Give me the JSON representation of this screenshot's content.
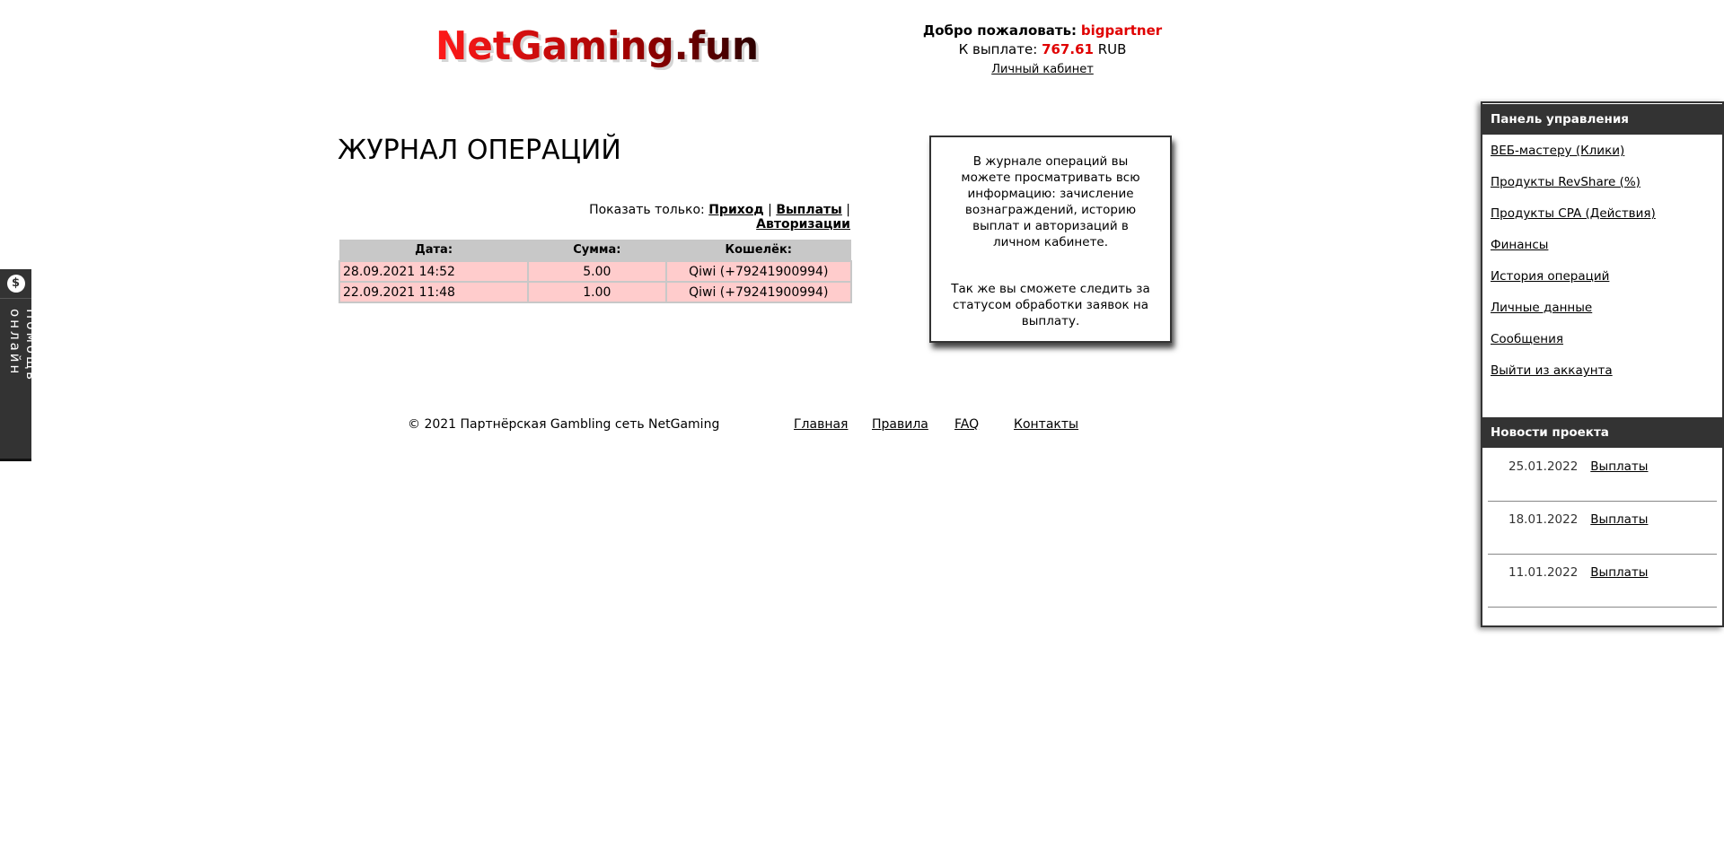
{
  "header": {
    "logo_text": "NetGaming.fun",
    "welcome_label": "Добро пожаловать:",
    "username": "bigpartner",
    "payout_label": "К выплате:",
    "payout_amount": "767.61",
    "currency": "RUB",
    "cabinet_link": "Личный кабинет"
  },
  "main": {
    "title": "ЖУРНАЛ ОПЕРАЦИЙ",
    "filter": {
      "label": "Показать только:",
      "options": [
        "Приход",
        "Выплаты",
        "Авторизации"
      ],
      "sep": "|"
    },
    "table": {
      "headers": [
        "Дата:",
        "Сумма:",
        "Кошелёк:"
      ],
      "rows": [
        [
          "28.09.2021 14:52",
          "5.00",
          "Qiwi (+79241900994)"
        ],
        [
          "22.09.2021 11:48",
          "1.00",
          "Qiwi (+79241900994)"
        ]
      ]
    }
  },
  "info": {
    "p1": "В журнале операций вы можете просматривать всю информацию: зачисление вознаграждений, историю выплат и авторизаций в личном кабинете.",
    "p2": "Так же вы сможете следить за статусом обработки заявок на выплату."
  },
  "footer": {
    "copyright": "© 2021 Партнёрская Gambling сеть NetGaming",
    "links": [
      "Главная",
      "Правила",
      "FAQ",
      "Контакты"
    ]
  },
  "panel": {
    "title": "Панель управления",
    "items": [
      "ВЕБ-мастеру (Клики)",
      "Продукты RevShare (%)",
      "Продукты CPA (Действия)",
      "Финансы",
      "История операций",
      "Личные данные",
      "Сообщения",
      "Выйти из аккаунта"
    ],
    "news_title": "Новости проекта",
    "news": [
      {
        "date": "25.01.2022",
        "link": "Выплаты"
      },
      {
        "date": "18.01.2022",
        "link": "Выплаты"
      },
      {
        "date": "11.01.2022",
        "link": "Выплаты"
      }
    ]
  },
  "help": {
    "label": "Помощь онлайн",
    "icon": "dollar-chat-icon"
  },
  "colors": {
    "accent": "#e00000",
    "panel_header": "#333333",
    "row_bg": "#ffcccc",
    "table_header": "#c8c8c8"
  }
}
